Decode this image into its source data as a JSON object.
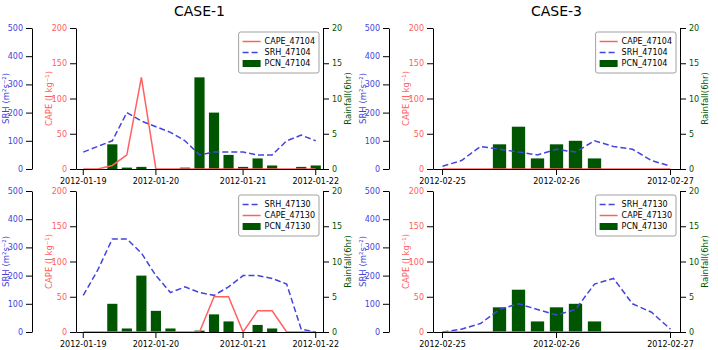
{
  "chart_data": [
    {
      "type": "line",
      "title": "CASE-1",
      "categories": [
        "2012-01-19",
        null,
        null,
        null,
        null,
        "2012-01-20",
        null,
        null,
        null,
        null,
        null,
        "2012-01-21",
        null,
        null,
        null,
        null,
        "2012-01-22"
      ],
      "ylabel": "SRH (m²s⁻²)",
      "ylim": [
        0,
        500
      ],
      "yticks": [
        0,
        100,
        200,
        300,
        400,
        500
      ],
      "y2label": "CAPE (J kg⁻¹)",
      "y2lim": [
        0,
        200
      ],
      "y2ticks": [
        0,
        50,
        100,
        150,
        200
      ],
      "y3label": "Rainfall(6hr)",
      "y3lim": [
        0,
        20
      ],
      "y3ticks": [
        0,
        5,
        10,
        15,
        20
      ],
      "legend": "upper right",
      "series": [
        {
          "name": "CAPE_47104",
          "type": "line",
          "axis": "y2",
          "color": "#FF6060",
          "line_style": "solid",
          "values": [
            0,
            0,
            5,
            20,
            130,
            0,
            0,
            0,
            0,
            0,
            0,
            0,
            0,
            0,
            0,
            0,
            0
          ]
        },
        {
          "name": "SRH_47104",
          "type": "line",
          "axis": "y",
          "color": "#4444DD",
          "line_style": "dashed",
          "values": [
            60,
            80,
            100,
            200,
            170,
            150,
            130,
            100,
            50,
            60,
            60,
            60,
            50,
            50,
            100,
            120,
            100
          ]
        },
        {
          "name": "PCN_47104",
          "type": "bar",
          "axis": "y3",
          "color": "#005500",
          "values": [
            0,
            0,
            3.5,
            0.2,
            0.3,
            0,
            0,
            0.2,
            13,
            8,
            2,
            0.3,
            1.5,
            0.5,
            0,
            0.3,
            0.5
          ]
        }
      ]
    },
    {
      "type": "line",
      "categories": [
        "2012-01-19",
        null,
        null,
        null,
        null,
        "2012-01-20",
        null,
        null,
        null,
        null,
        null,
        "2012-01-21",
        null,
        null,
        null,
        null,
        "2012-01-22"
      ],
      "ylabel": "SRH (m²s⁻²)",
      "ylim": [
        0,
        500
      ],
      "yticks": [
        0,
        100,
        200,
        300,
        400,
        500
      ],
      "y2label": "CAPE (J kg⁻¹)",
      "y2lim": [
        0,
        200
      ],
      "y2ticks": [
        0,
        50,
        100,
        150,
        200
      ],
      "y3label": "Rainfall(6hr)",
      "y3lim": [
        0,
        20
      ],
      "y3ticks": [
        0,
        5,
        10,
        15,
        20
      ],
      "legend": "upper right",
      "series": [
        {
          "name": "SRH_47130",
          "type": "line",
          "axis": "y",
          "color": "#4444DD",
          "line_style": "dashed",
          "values": [
            130,
            220,
            330,
            330,
            280,
            200,
            140,
            160,
            140,
            130,
            160,
            200,
            200,
            190,
            170,
            10,
            0
          ]
        },
        {
          "name": "CAPE_47130",
          "type": "line",
          "axis": "y2",
          "color": "#FF6060",
          "line_style": "solid",
          "values": [
            0,
            0,
            0,
            0,
            0,
            0,
            0,
            0,
            0,
            50,
            50,
            0,
            30,
            30,
            0,
            0,
            0
          ]
        },
        {
          "name": "PCN_47130",
          "type": "bar",
          "axis": "y3",
          "color": "#005500",
          "values": [
            0,
            0,
            4,
            0.5,
            8,
            3,
            0.5,
            0,
            0.2,
            2.5,
            1.5,
            0,
            1,
            0.5,
            0,
            0,
            0
          ]
        }
      ]
    },
    {
      "type": "line",
      "title": "CASE-3",
      "categories": [
        "2012-02-25",
        null,
        null,
        null,
        null,
        null,
        "2012-02-26",
        null,
        null,
        null,
        null,
        null,
        "2012-02-27"
      ],
      "ylabel": "SRH (m²s⁻²)",
      "ylim": [
        0,
        500
      ],
      "yticks": [
        0,
        100,
        200,
        300,
        400,
        500
      ],
      "y2label": "CAPE (J kg⁻¹)",
      "y2lim": [
        0,
        200
      ],
      "y2ticks": [
        0,
        50,
        100,
        150,
        200
      ],
      "y3label": "Rainfall(6hr)",
      "y3lim": [
        0,
        20
      ],
      "y3ticks": [
        0,
        5,
        10,
        15,
        20
      ],
      "legend": "upper right",
      "series": [
        {
          "name": "CAPE_47104",
          "type": "line",
          "axis": "y2",
          "color": "#FF6060",
          "line_style": "solid",
          "values": [
            0,
            0,
            0,
            0,
            0,
            0,
            0,
            0,
            0,
            0,
            0,
            0,
            0
          ]
        },
        {
          "name": "SRH_47104",
          "type": "line",
          "axis": "y",
          "color": "#4444DD",
          "line_style": "dashed",
          "values": [
            10,
            30,
            80,
            70,
            60,
            50,
            70,
            60,
            100,
            80,
            70,
            30,
            10
          ]
        },
        {
          "name": "PCN_47104",
          "type": "bar",
          "axis": "y3",
          "color": "#005500",
          "values": [
            0,
            0,
            0,
            3.5,
            6,
            1.5,
            3.5,
            4,
            1.5,
            0,
            0,
            0,
            0
          ]
        }
      ]
    },
    {
      "type": "line",
      "categories": [
        "2012-02-25",
        null,
        null,
        null,
        null,
        null,
        "2012-02-26",
        null,
        null,
        null,
        null,
        null,
        "2012-02-27"
      ],
      "ylabel": "SRH (m²s⁻²)",
      "ylim": [
        0,
        500
      ],
      "yticks": [
        0,
        100,
        200,
        300,
        400,
        500
      ],
      "y2label": "CAPE (J kg⁻¹)",
      "y2lim": [
        0,
        200
      ],
      "y2ticks": [
        0,
        50,
        100,
        150,
        200
      ],
      "y3label": "Rainfall(6hr)",
      "y3lim": [
        0,
        20
      ],
      "y3ticks": [
        0,
        5,
        10,
        15,
        20
      ],
      "legend": "upper right",
      "series": [
        {
          "name": "SRH_47130",
          "type": "line",
          "axis": "y",
          "color": "#4444DD",
          "line_style": "dashed",
          "values": [
            0,
            10,
            30,
            80,
            100,
            80,
            60,
            80,
            170,
            190,
            100,
            70,
            10
          ]
        },
        {
          "name": "CAPE_47130",
          "type": "line",
          "axis": "y2",
          "color": "#FF6060",
          "line_style": "solid",
          "values": [
            0,
            0,
            0,
            0,
            0,
            0,
            0,
            0,
            0,
            0,
            0,
            0,
            0
          ]
        },
        {
          "name": "PCN_47130",
          "type": "bar",
          "axis": "y3",
          "color": "#005500",
          "values": [
            0,
            0,
            0,
            3.5,
            6,
            1.5,
            3.5,
            4,
            1.5,
            0,
            0,
            0,
            0
          ]
        }
      ]
    }
  ]
}
